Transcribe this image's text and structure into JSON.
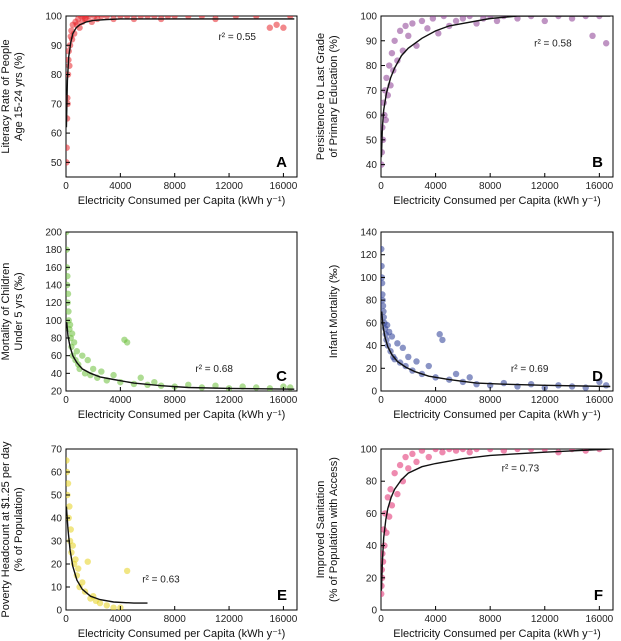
{
  "chart_data": [
    {
      "type": "scatter",
      "panel": "A",
      "color": "#e8262b",
      "ylabel": [
        "Literacy Rate of People",
        "Age 15-24 yrs (%)"
      ],
      "xlabel": "Electricity Consumed per Capita (kWh y⁻¹)",
      "xlim": [
        0,
        17000
      ],
      "ylim": [
        45,
        100
      ],
      "xticks": [
        0,
        4000,
        8000,
        12000,
        16000
      ],
      "xtick_labels": [
        "0",
        "4000",
        "8000",
        "12000",
        "16000"
      ],
      "yticks": [
        50,
        60,
        70,
        80,
        90,
        100
      ],
      "ytick_labels": [
        "50",
        "60",
        "70",
        "80",
        "90",
        "100"
      ],
      "r2": "r² = 0.55",
      "fit": {
        "x": [
          30,
          100,
          200,
          350,
          500,
          750,
          1000,
          1500,
          2000,
          3000,
          4000,
          8000,
          12000,
          16800
        ],
        "y": [
          62,
          78,
          86,
          91,
          94,
          96,
          97,
          98,
          98.5,
          98.8,
          99,
          99,
          99,
          99
        ]
      },
      "points": {
        "x": [
          30,
          50,
          80,
          100,
          120,
          150,
          180,
          200,
          250,
          300,
          350,
          400,
          450,
          500,
          600,
          700,
          800,
          900,
          1000,
          1100,
          1200,
          1300,
          1400,
          1500,
          1700,
          1900,
          2100,
          2300,
          2600,
          3000,
          3500,
          4000,
          4500,
          5000,
          5500,
          6000,
          6500,
          7000,
          7500,
          8000,
          9000,
          10000,
          11000,
          12500,
          14000,
          15000,
          15500,
          16000,
          16500
        ],
        "y": [
          50,
          55,
          65,
          72,
          70,
          80,
          85,
          88,
          83,
          90,
          93,
          95,
          92,
          97,
          94,
          98,
          97,
          99,
          96,
          100,
          98,
          100,
          99,
          99,
          100,
          98,
          100,
          99,
          100,
          100,
          99,
          100,
          100,
          99,
          100,
          100,
          100,
          99,
          100,
          100,
          100,
          100,
          99,
          100,
          100,
          96,
          97,
          96,
          100
        ]
      }
    },
    {
      "type": "scatter",
      "panel": "B",
      "color": "#8a3d92",
      "ylabel": [
        "Persistence to Last Grade",
        "of Primary Education (%)"
      ],
      "xlabel": "Electricity Consumed per Capita (kWh  y⁻¹)",
      "xlim": [
        0,
        17000
      ],
      "ylim": [
        35,
        100
      ],
      "xticks": [
        0,
        4000,
        8000,
        12000,
        16000
      ],
      "xtick_labels": [
        "0",
        "4000",
        "8000",
        "12000",
        "16000"
      ],
      "yticks": [
        40,
        50,
        60,
        70,
        80,
        90,
        100
      ],
      "ytick_labels": [
        "40",
        "50",
        "60",
        "70",
        "80",
        "90",
        "100"
      ],
      "r2": "r² = 0.58",
      "fit": {
        "x": [
          30,
          100,
          200,
          400,
          700,
          1000,
          1500,
          2000,
          3000,
          4000,
          5000,
          6000,
          8000,
          10000,
          12000,
          16800
        ],
        "y": [
          43,
          55,
          62,
          69,
          75,
          79,
          84,
          87,
          91,
          94,
          96,
          97,
          99,
          100,
          100,
          100
        ]
      },
      "points": {
        "x": [
          30,
          60,
          100,
          150,
          200,
          250,
          300,
          350,
          400,
          500,
          600,
          700,
          800,
          900,
          1000,
          1200,
          1400,
          1600,
          1800,
          2000,
          2300,
          2600,
          3000,
          3400,
          3800,
          4200,
          4600,
          5000,
          5500,
          6000,
          6500,
          7000,
          7500,
          8000,
          8500,
          9000,
          10000,
          11000,
          12000,
          13000,
          14000,
          15000,
          15500,
          16000,
          16500
        ],
        "y": [
          40,
          45,
          55,
          50,
          65,
          60,
          70,
          58,
          75,
          68,
          80,
          72,
          85,
          78,
          90,
          82,
          94,
          86,
          96,
          92,
          97,
          88,
          98,
          95,
          99,
          93,
          100,
          96,
          98,
          99,
          100,
          97,
          99,
          100,
          98,
          100,
          99,
          100,
          98,
          100,
          99,
          100,
          92,
          100,
          89
        ]
      }
    },
    {
      "type": "scatter",
      "panel": "C",
      "color": "#6cbf3b",
      "ylabel": [
        "Mortality of Children",
        "Under 5 yrs (‰)"
      ],
      "xlabel": "Electricity Consumed per Capita (kWh  y⁻¹)",
      "xlim": [
        0,
        17000
      ],
      "ylim": [
        20,
        200
      ],
      "xticks": [
        0,
        4000,
        8000,
        12000,
        16000
      ],
      "xtick_labels": [
        "0",
        "4000",
        "8000",
        "12000",
        "16000"
      ],
      "yticks": [
        20,
        40,
        60,
        80,
        100,
        120,
        140,
        160,
        180,
        200
      ],
      "ytick_labels": [
        "20",
        "40",
        "60",
        "80",
        "100",
        "120",
        "140",
        "160",
        "180",
        "200"
      ],
      "r2": "r² = 0.68",
      "fit": {
        "x": [
          50,
          150,
          300,
          500,
          800,
          1200,
          1800,
          2500,
          3500,
          5000,
          7000,
          9000,
          12000,
          16800
        ],
        "y": [
          98,
          82,
          70,
          60,
          52,
          45,
          40,
          36,
          33,
          29,
          26,
          24,
          23,
          22
        ]
      },
      "points": {
        "x": [
          20,
          40,
          60,
          80,
          100,
          120,
          150,
          180,
          200,
          250,
          300,
          350,
          400,
          450,
          500,
          600,
          700,
          800,
          900,
          1000,
          1200,
          1400,
          1600,
          1800,
          2000,
          2300,
          2600,
          3000,
          3500,
          4000,
          4300,
          4500,
          5000,
          5500,
          6000,
          6500,
          7000,
          8000,
          9000,
          10000,
          11000,
          12000,
          13000,
          14000,
          15000,
          16000,
          16500
        ],
        "y": [
          200,
          180,
          160,
          140,
          150,
          120,
          130,
          110,
          100,
          90,
          95,
          80,
          70,
          85,
          60,
          75,
          55,
          65,
          50,
          45,
          60,
          40,
          55,
          38,
          45,
          35,
          42,
          32,
          38,
          30,
          78,
          75,
          28,
          35,
          27,
          30,
          26,
          25,
          27,
          24,
          26,
          23,
          25,
          24,
          23,
          25,
          24
        ]
      }
    },
    {
      "type": "scatter",
      "panel": "D",
      "color": "#2a3d96",
      "ylabel": [
        "Infant Mortality (‰)"
      ],
      "xlabel": "Electricity Consumed per Capita (kWh  y⁻¹)",
      "xlim": [
        0,
        17000
      ],
      "ylim": [
        0,
        140
      ],
      "xticks": [
        0,
        4000,
        8000,
        12000,
        16000
      ],
      "xtick_labels": [
        "0",
        "4000",
        "8000",
        "12000",
        "16000"
      ],
      "yticks": [
        0,
        20,
        40,
        60,
        80,
        100,
        120,
        140
      ],
      "ytick_labels": [
        "0",
        "20",
        "40",
        "60",
        "80",
        "100",
        "120",
        "140"
      ],
      "r2": "r² = 0.69",
      "fit": {
        "x": [
          50,
          150,
          300,
          500,
          800,
          1200,
          1800,
          2500,
          3500,
          5000,
          7000,
          9000,
          12000,
          16800
        ],
        "y": [
          70,
          57,
          47,
          39,
          32,
          26,
          21,
          17,
          13,
          10,
          7,
          6,
          5,
          4
        ]
      },
      "points": {
        "x": [
          20,
          40,
          60,
          80,
          100,
          120,
          150,
          180,
          200,
          250,
          300,
          350,
          400,
          450,
          500,
          600,
          700,
          800,
          900,
          1000,
          1200,
          1400,
          1600,
          1800,
          2000,
          2300,
          2600,
          3000,
          3500,
          4000,
          4300,
          4500,
          5000,
          5500,
          6000,
          6500,
          7000,
          8000,
          9000,
          10000,
          11000,
          12000,
          13000,
          14000,
          15000,
          16000,
          16500
        ],
        "y": [
          125,
          110,
          100,
          95,
          85,
          80,
          75,
          70,
          65,
          60,
          55,
          50,
          45,
          58,
          40,
          52,
          35,
          48,
          30,
          28,
          42,
          25,
          38,
          22,
          30,
          18,
          26,
          15,
          22,
          12,
          50,
          45,
          10,
          15,
          8,
          12,
          6,
          5,
          7,
          4,
          6,
          3,
          5,
          4,
          3,
          8,
          5
        ]
      }
    },
    {
      "type": "scatter",
      "panel": "E",
      "color": "#e6d21f",
      "ylabel": [
        "Poverty Headcount at $1.25 per day",
        "(% of Population)"
      ],
      "xlabel": "Electricity Consumed per Capita (kWh  y⁻¹)",
      "xlim": [
        0,
        17000
      ],
      "ylim": [
        0,
        70
      ],
      "xticks": [
        0,
        4000,
        8000,
        12000,
        16000
      ],
      "xtick_labels": [
        "0",
        "4000",
        "8000",
        "12000",
        "16000"
      ],
      "yticks": [
        0,
        10,
        20,
        30,
        40,
        50,
        60,
        70
      ],
      "ytick_labels": [
        "0",
        "10",
        "20",
        "30",
        "40",
        "50",
        "60",
        "70"
      ],
      "r2": "r² = 0.63",
      "fit": {
        "x": [
          30,
          150,
          300,
          500,
          800,
          1200,
          1800,
          2500,
          3500,
          5000,
          6000
        ],
        "y": [
          45,
          35,
          26,
          19,
          13,
          9,
          6,
          4.5,
          3.5,
          3,
          3
        ]
      },
      "points": {
        "x": [
          30,
          60,
          100,
          150,
          200,
          250,
          300,
          350,
          400,
          500,
          600,
          700,
          800,
          900,
          1000,
          1200,
          1400,
          1600,
          1800,
          2000,
          2200,
          2500,
          3000,
          3500,
          4000,
          4500
        ],
        "y": [
          65,
          60,
          50,
          55,
          40,
          45,
          30,
          35,
          25,
          28,
          20,
          22,
          15,
          18,
          10,
          12,
          8,
          21,
          5,
          6,
          4,
          3,
          2,
          1,
          1,
          17
        ]
      }
    },
    {
      "type": "scatter",
      "panel": "F",
      "color": "#e0296d",
      "ylabel": [
        "Improved Sanitation",
        "(% of Population with Access)"
      ],
      "xlabel": "Electricity Consumed per Capita (kWh  y⁻¹)",
      "xlim": [
        0,
        17000
      ],
      "ylim": [
        0,
        100
      ],
      "xticks": [
        0,
        4000,
        8000,
        12000,
        16000
      ],
      "xtick_labels": [
        "0",
        "4000",
        "8000",
        "12000",
        "16000"
      ],
      "yticks": [
        0,
        20,
        40,
        60,
        80,
        100
      ],
      "ytick_labels": [
        "0",
        "20",
        "40",
        "60",
        "80",
        "100"
      ],
      "r2": "r² = 0.73",
      "fit": {
        "x": [
          30,
          100,
          200,
          350,
          500,
          750,
          1000,
          1500,
          2000,
          3000,
          4000,
          6000,
          8000,
          12000,
          16800
        ],
        "y": [
          12,
          30,
          45,
          56,
          63,
          70,
          75,
          81,
          85,
          89,
          91,
          94,
          96,
          98,
          100
        ]
      },
      "points": {
        "x": [
          20,
          40,
          60,
          80,
          100,
          150,
          200,
          250,
          300,
          400,
          500,
          600,
          700,
          800,
          1000,
          1200,
          1400,
          1600,
          1800,
          2000,
          2300,
          2600,
          3000,
          3500,
          4000,
          4500,
          5000,
          5500,
          6000,
          6500,
          7000,
          8000,
          9000,
          10000,
          11000,
          12000,
          13000,
          14000,
          15000,
          16000
        ],
        "y": [
          10,
          15,
          25,
          20,
          35,
          30,
          50,
          40,
          60,
          48,
          70,
          58,
          75,
          65,
          85,
          72,
          90,
          80,
          95,
          88,
          97,
          92,
          99,
          95,
          100,
          98,
          100,
          99,
          100,
          98,
          100,
          100,
          99,
          100,
          100,
          100,
          98,
          100,
          99,
          100
        ]
      }
    }
  ]
}
